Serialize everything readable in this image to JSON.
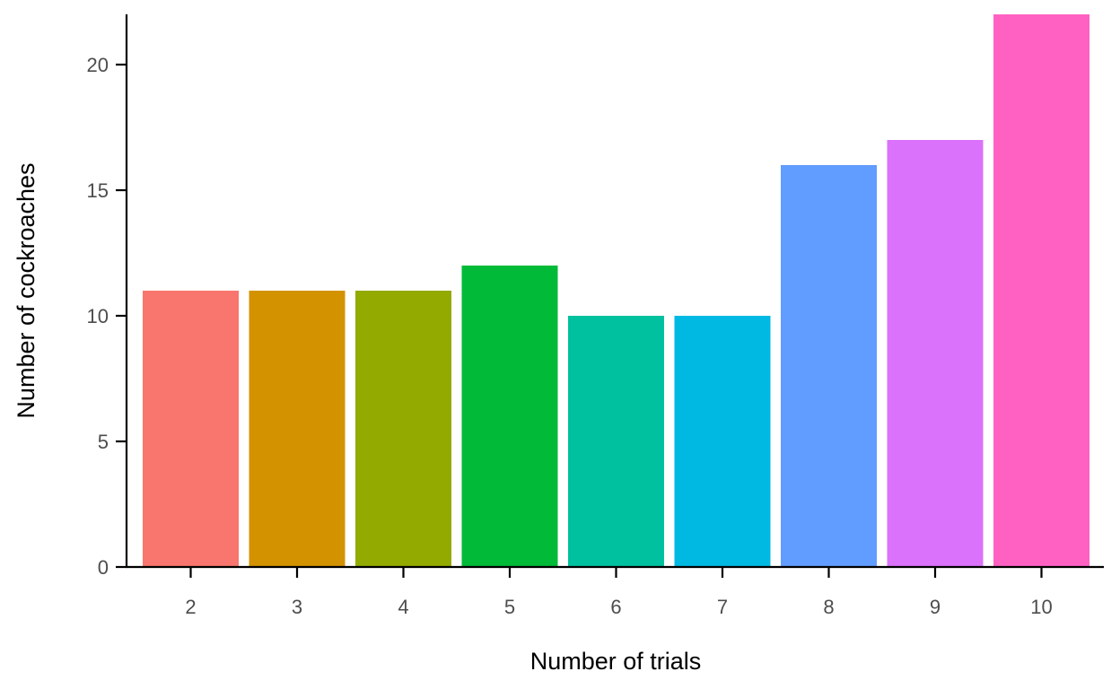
{
  "chart_data": {
    "type": "bar",
    "categories": [
      "2",
      "3",
      "4",
      "5",
      "6",
      "7",
      "8",
      "9",
      "10"
    ],
    "values": [
      11,
      11,
      11,
      12,
      10,
      10,
      16,
      17,
      22
    ],
    "colors": [
      "#F8766D",
      "#D39200",
      "#93AA00",
      "#00BA38",
      "#00C19F",
      "#00B9E3",
      "#619CFF",
      "#DB72FB",
      "#FF61C3"
    ],
    "title": "",
    "xlabel": "Number of trials",
    "ylabel": "Number of cockroaches",
    "ylim": [
      0,
      22
    ],
    "yticks": [
      0,
      5,
      10,
      15,
      20
    ],
    "grid": false,
    "legend": "none"
  }
}
